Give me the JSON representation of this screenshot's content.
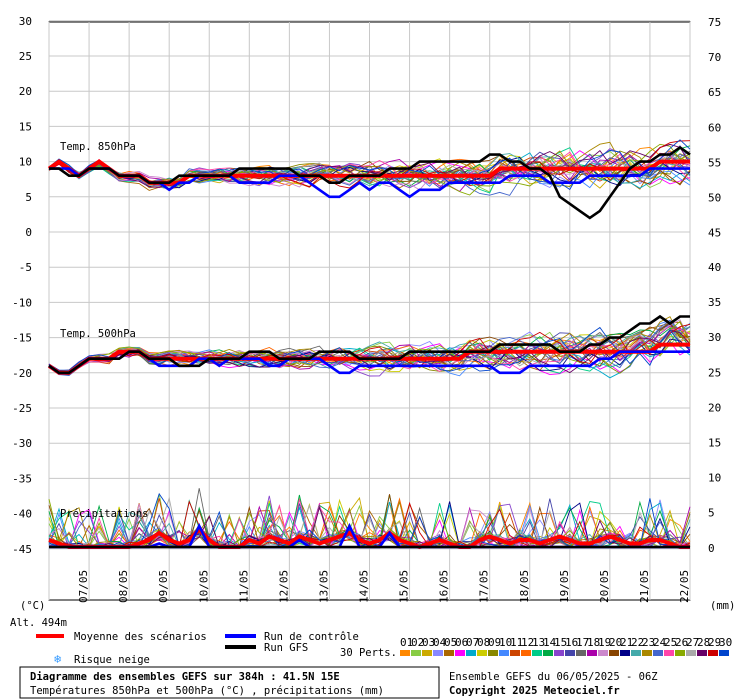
{
  "chart_data": {
    "type": "line",
    "title": "Diagramme des ensembles GEFS sur 384h : 41.5N 15E",
    "subtitle": "Températures 850hPa et 500hPa (°C) , précipitations (mm)",
    "ensemble_label": "Ensemble GEFS du 06/05/2025 - 06Z",
    "copyright": "Copyright 2025 Meteociel.fr",
    "altitude": "Alt. 494m",
    "left_unit": "(°C)",
    "right_unit": "(mm)",
    "x_tick_labels": [
      "07/05",
      "08/05",
      "09/05",
      "10/05",
      "11/05",
      "12/05",
      "13/05",
      "14/05",
      "15/05",
      "16/05",
      "17/05",
      "18/05",
      "19/05",
      "20/05",
      "21/05",
      "22/05"
    ],
    "left_axis_ticks": [
      "30",
      "25",
      "20",
      "15",
      "10",
      "5",
      "0",
      "-5",
      "-10",
      "-15",
      "-20",
      "-25",
      "-30",
      "-35",
      "-40",
      "-45"
    ],
    "right_axis_top_ticks": [
      "75",
      "70",
      "65",
      "60",
      "55",
      "50",
      "45"
    ],
    "right_axis_bottom_ticks": [
      "40",
      "35",
      "30",
      "25",
      "20",
      "15",
      "10",
      "5",
      "0"
    ],
    "panel_labels": {
      "t850": "Temp. 850hPa",
      "t500": "Temp. 500hPa",
      "precip": "Précipitations"
    },
    "legend": {
      "mean": "Moyenne des scénarios",
      "control": "Run de contrôle",
      "gfs": "Run GFS",
      "snow": "Risque neige",
      "perts": "30 Perts.",
      "member_numbers": [
        "01",
        "02",
        "03",
        "04",
        "05",
        "06",
        "07",
        "08",
        "09",
        "10",
        "11",
        "12",
        "13",
        "14",
        "15",
        "16",
        "17",
        "18",
        "19",
        "20",
        "21",
        "22",
        "23",
        "24",
        "25",
        "26",
        "27",
        "28",
        "29",
        "30"
      ]
    },
    "member_colors": [
      "#ff8800",
      "#88cc44",
      "#ccaa00",
      "#8888ff",
      "#aa6600",
      "#ff00ff",
      "#00aacc",
      "#cccc00",
      "#888800",
      "#4488ff",
      "#cc4400",
      "#ff6600",
      "#00cc88",
      "#00aa44",
      "#8844cc",
      "#4444aa",
      "#666666",
      "#aa00aa",
      "#cc88cc",
      "#884400",
      "#000088",
      "#44aaaa",
      "#aa8800",
      "#4466cc",
      "#ff44aa",
      "#88aa00",
      "#aaaaaa",
      "#660066",
      "#cc0000",
      "#0044cc"
    ],
    "series_colors": {
      "mean": "#ff0000",
      "control": "#0000ff",
      "gfs": "#000000"
    },
    "x": [
      0,
      6,
      12,
      18,
      24,
      30,
      36,
      42,
      48,
      54,
      60,
      66,
      72,
      78,
      84,
      90,
      96,
      102,
      108,
      114,
      120,
      126,
      132,
      138,
      144,
      150,
      156,
      162,
      168,
      174,
      180,
      186,
      192,
      198,
      204,
      210,
      216,
      222,
      228,
      234,
      240,
      246,
      252,
      258,
      264,
      270,
      276,
      282,
      288,
      294,
      300,
      306,
      312,
      318,
      324,
      330,
      336,
      342,
      348,
      354,
      360,
      366,
      372,
      378,
      384
    ],
    "series": [
      {
        "name": "Moyenne des scénarios",
        "t850": [
          9,
          10,
          9,
          8,
          9,
          10,
          9,
          8,
          8,
          8,
          7,
          7,
          7,
          7,
          8,
          8,
          8,
          8,
          8,
          8,
          8,
          8,
          8,
          8,
          8,
          8,
          8,
          8,
          8,
          8,
          8,
          8,
          8,
          8,
          8,
          8,
          8,
          8,
          8,
          8,
          8,
          8,
          8,
          8,
          8,
          9,
          9,
          9,
          9,
          9,
          9,
          9,
          9,
          9,
          9,
          9,
          9,
          9,
          9,
          9,
          9,
          10,
          10,
          10,
          10
        ],
        "t500": [
          -19,
          -20,
          -20,
          -19,
          -18,
          -18,
          -18,
          -17,
          -17,
          -17,
          -18,
          -18,
          -18,
          -18,
          -18,
          -18,
          -18,
          -18,
          -18,
          -18,
          -18,
          -18,
          -18,
          -18,
          -18,
          -18,
          -18,
          -18,
          -18,
          -18,
          -18,
          -18,
          -18,
          -18,
          -18,
          -18,
          -18,
          -18,
          -18,
          -18,
          -18,
          -18,
          -17,
          -17,
          -17,
          -17,
          -17,
          -17,
          -17,
          -17,
          -17,
          -17,
          -17,
          -17,
          -17,
          -17,
          -17,
          -17,
          -17,
          -17,
          -17,
          -16,
          -16,
          -16,
          -16
        ],
        "precip": [
          1,
          0.5,
          0,
          0,
          0,
          0,
          0,
          0,
          0,
          0.5,
          1,
          2,
          1,
          0.5,
          1,
          2.5,
          1,
          0,
          0,
          0,
          1,
          0.5,
          1.5,
          1,
          0.5,
          1.5,
          1,
          0.5,
          1,
          1.5,
          2,
          1,
          0.5,
          1,
          2,
          1,
          0.5,
          0,
          0.5,
          1,
          0.5,
          0,
          0,
          1,
          1.5,
          1,
          0.5,
          1,
          1,
          0.5,
          1,
          1.5,
          1,
          0.5,
          0.5,
          1,
          1.5,
          1,
          0.5,
          0.5,
          1,
          1,
          0.5,
          0,
          0
        ]
      },
      {
        "name": "Run de contrôle",
        "t850": [
          9,
          9,
          9,
          8,
          9,
          9,
          9,
          8,
          8,
          8,
          7,
          7,
          6,
          7,
          7,
          8,
          8,
          8,
          8,
          7,
          7,
          7,
          7,
          8,
          8,
          8,
          7,
          6,
          5,
          5,
          6,
          7,
          6,
          7,
          7,
          6,
          5,
          6,
          6,
          6,
          7,
          7,
          7,
          7,
          7,
          7,
          8,
          8,
          8,
          8,
          7,
          7,
          7,
          7,
          8,
          8,
          8,
          8,
          8,
          8,
          9,
          9,
          9,
          9,
          9
        ],
        "t500": [
          -19,
          -20,
          -20,
          -19,
          -18,
          -18,
          -18,
          -18,
          -17,
          -17,
          -18,
          -19,
          -19,
          -19,
          -19,
          -18,
          -18,
          -19,
          -18,
          -18,
          -18,
          -18,
          -19,
          -19,
          -18,
          -18,
          -18,
          -18,
          -19,
          -20,
          -20,
          -19,
          -19,
          -19,
          -19,
          -19,
          -19,
          -19,
          -19,
          -19,
          -19,
          -19,
          -19,
          -19,
          -19,
          -20,
          -20,
          -20,
          -19,
          -19,
          -19,
          -19,
          -19,
          -19,
          -19,
          -18,
          -18,
          -17,
          -17,
          -17,
          -17,
          -17,
          -17,
          -17,
          -17
        ],
        "precip": [
          0,
          0,
          0,
          0,
          0,
          0,
          0,
          0,
          0,
          0,
          0,
          0.5,
          0,
          0,
          0,
          3,
          0,
          0,
          0,
          0,
          0,
          0,
          0,
          0,
          0,
          1,
          0,
          0,
          0,
          0,
          3,
          0,
          0,
          0,
          2,
          0,
          0,
          0,
          0,
          0,
          0,
          0,
          0,
          0,
          0,
          0,
          0,
          0,
          0,
          0,
          0,
          0,
          0,
          0,
          0,
          0,
          0,
          0,
          0,
          0,
          0,
          0,
          0,
          0,
          0
        ]
      },
      {
        "name": "Run GFS",
        "t850": [
          9,
          9,
          8,
          8,
          9,
          9,
          9,
          8,
          8,
          8,
          7,
          7,
          7,
          8,
          8,
          8,
          8,
          8,
          8,
          9,
          9,
          9,
          9,
          9,
          9,
          8,
          8,
          8,
          7,
          7,
          8,
          8,
          8,
          8,
          9,
          9,
          9,
          10,
          10,
          10,
          10,
          10,
          10,
          10,
          11,
          11,
          10,
          10,
          9,
          9,
          8,
          5,
          4,
          3,
          2,
          3,
          5,
          7,
          9,
          10,
          10,
          11,
          11,
          12,
          11
        ],
        "t500": [
          -19,
          -20,
          -20,
          -19,
          -18,
          -18,
          -18,
          -18,
          -17,
          -17,
          -18,
          -18,
          -18,
          -19,
          -19,
          -19,
          -18,
          -18,
          -18,
          -18,
          -17,
          -17,
          -17,
          -18,
          -18,
          -18,
          -18,
          -17,
          -17,
          -17,
          -17,
          -18,
          -18,
          -18,
          -18,
          -18,
          -17,
          -17,
          -17,
          -17,
          -17,
          -17,
          -17,
          -17,
          -17,
          -16,
          -16,
          -16,
          -16,
          -16,
          -16,
          -17,
          -17,
          -17,
          -16,
          -16,
          -15,
          -15,
          -14,
          -13,
          -13,
          -12,
          -13,
          -12,
          -12
        ],
        "precip": [
          0,
          0,
          0,
          0,
          0,
          0,
          0,
          0,
          0,
          0,
          0,
          0,
          0,
          0,
          0,
          0,
          0,
          0,
          0,
          0,
          0,
          0,
          0,
          0,
          0,
          0,
          0,
          0,
          0,
          0,
          0,
          0,
          0,
          0,
          0,
          0,
          0,
          0,
          0,
          0,
          0,
          0,
          0,
          0,
          0,
          0,
          0,
          0,
          0,
          0,
          0,
          0,
          0,
          0,
          0,
          0,
          0,
          0,
          0,
          0,
          0,
          0,
          0,
          0,
          0
        ]
      }
    ]
  }
}
